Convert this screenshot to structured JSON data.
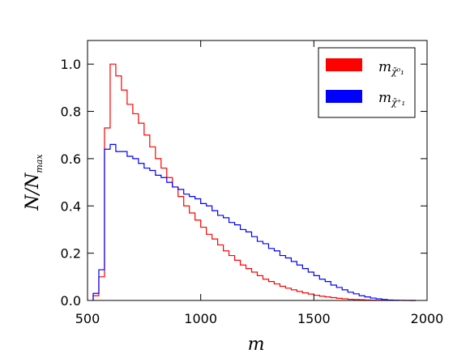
{
  "chart_data": {
    "type": "line",
    "style": "step histogram",
    "xlabel_main": "m",
    "ylabel_main": "N/N",
    "ylabel_sub": "max",
    "xlim": [
      500,
      2000
    ],
    "ylim": [
      0,
      1.1
    ],
    "xticks": [
      500,
      1000,
      1500,
      2000
    ],
    "yticks": [
      0.0,
      0.2,
      0.4,
      0.6,
      0.8,
      1.0
    ],
    "xtick_labels": [
      "500",
      "1000",
      "1500",
      "2000"
    ],
    "ytick_labels": [
      "0.0",
      "0.2",
      "0.4",
      "0.6",
      "0.8",
      "1.0"
    ],
    "grid": false,
    "legend_position": "top-right",
    "bin_edges": [
      525,
      550,
      575,
      600,
      625,
      650,
      675,
      700,
      725,
      750,
      775,
      800,
      825,
      850,
      875,
      900,
      925,
      950,
      975,
      1000,
      1025,
      1050,
      1075,
      1100,
      1125,
      1150,
      1175,
      1200,
      1225,
      1250,
      1275,
      1300,
      1325,
      1350,
      1375,
      1400,
      1425,
      1450,
      1475,
      1500,
      1525,
      1550,
      1575,
      1600,
      1625,
      1650,
      1675,
      1700,
      1725,
      1750,
      1775,
      1800,
      1825,
      1850,
      1875,
      1900,
      1925,
      1950
    ],
    "series": [
      {
        "legend_main": "m",
        "legend_sub": "χ̃⁰₁",
        "color": "#ff0000",
        "values": [
          0.02,
          0.1,
          0.73,
          1.0,
          0.95,
          0.89,
          0.83,
          0.79,
          0.75,
          0.7,
          0.65,
          0.6,
          0.56,
          0.52,
          0.48,
          0.44,
          0.4,
          0.37,
          0.34,
          0.31,
          0.28,
          0.26,
          0.235,
          0.21,
          0.19,
          0.17,
          0.15,
          0.135,
          0.12,
          0.105,
          0.09,
          0.08,
          0.07,
          0.06,
          0.052,
          0.045,
          0.038,
          0.032,
          0.027,
          0.022,
          0.018,
          0.015,
          0.012,
          0.009,
          0.007,
          0.005,
          0.004,
          0.003,
          0.002,
          0.0015,
          0.001,
          0.0007,
          0.0005,
          0.0003,
          0.0002,
          0.0001,
          0.0
        ]
      },
      {
        "legend_main": "m",
        "legend_sub": "χ̃⁺₁",
        "color": "#0000ff",
        "values": [
          0.03,
          0.13,
          0.64,
          0.66,
          0.63,
          0.63,
          0.61,
          0.6,
          0.58,
          0.56,
          0.55,
          0.53,
          0.52,
          0.5,
          0.48,
          0.47,
          0.45,
          0.44,
          0.43,
          0.41,
          0.4,
          0.38,
          0.36,
          0.35,
          0.33,
          0.32,
          0.3,
          0.29,
          0.27,
          0.25,
          0.24,
          0.22,
          0.21,
          0.19,
          0.18,
          0.165,
          0.15,
          0.135,
          0.12,
          0.105,
          0.09,
          0.08,
          0.065,
          0.055,
          0.045,
          0.035,
          0.028,
          0.02,
          0.015,
          0.01,
          0.007,
          0.004,
          0.002,
          0.001,
          0.0005,
          0.0002,
          0.0
        ]
      }
    ]
  }
}
